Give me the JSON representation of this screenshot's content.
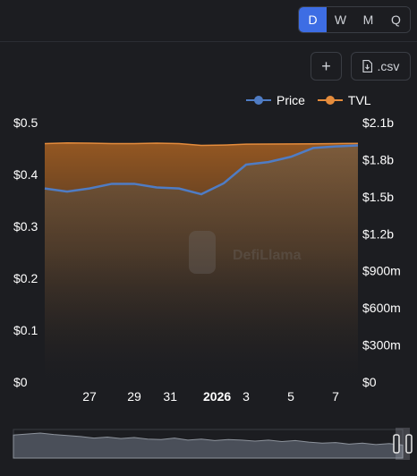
{
  "toolbar": {
    "intervals": [
      {
        "label": "D",
        "active": true
      },
      {
        "label": "W",
        "active": false
      },
      {
        "label": "M",
        "active": false
      },
      {
        "label": "Q",
        "active": false
      }
    ],
    "add_label": "+",
    "csv_label": ".csv",
    "add_icon": "plus-icon",
    "csv_icon": "file-download-icon"
  },
  "watermark": "DefiLlama",
  "colors": {
    "background": "#1c1d21",
    "price": "#4f7cc4",
    "tvl": "#e58c3c",
    "active": "#3d6de4"
  },
  "chart_data": {
    "type": "line",
    "title": "",
    "x": [
      "Dec 25",
      "Dec 26",
      "Dec 27",
      "Dec 28",
      "Dec 29",
      "Dec 30",
      "Dec 31",
      "Jan 1",
      "Jan 2",
      "Jan 3",
      "Jan 4",
      "Jan 5",
      "Jan 6",
      "Jan 7",
      "Jan 8"
    ],
    "x_tick_labels": [
      "27",
      "29",
      "31",
      "2026",
      "3",
      "5",
      "7"
    ],
    "x_tick_index": [
      2,
      4,
      6,
      7,
      9,
      11,
      13
    ],
    "y_left_ticks": [
      "$0",
      "$0.1",
      "$0.2",
      "$0.3",
      "$0.4",
      "$0.5"
    ],
    "y_right_ticks": [
      "$0",
      "$300m",
      "$600m",
      "$900m",
      "$1.2b",
      "$1.5b",
      "$1.8b",
      "$2.1b"
    ],
    "y_left_range": [
      0,
      0.5
    ],
    "y_right_range": [
      0,
      2100000000
    ],
    "legend_position": "top-right",
    "grid": false,
    "series": [
      {
        "name": "Price",
        "axis": "left",
        "style": "line",
        "values": [
          0.373,
          0.367,
          0.373,
          0.382,
          0.382,
          0.375,
          0.373,
          0.362,
          0.383,
          0.419,
          0.424,
          0.434,
          0.451,
          0.454,
          0.456
        ]
      },
      {
        "name": "TVL",
        "axis": "right",
        "style": "area",
        "values": [
          1930000000,
          1935000000,
          1933000000,
          1930000000,
          1930000000,
          1933000000,
          1930000000,
          1915000000,
          1918000000,
          1925000000,
          1926000000,
          1927000000,
          1928000000,
          1930000000,
          1932000000
        ]
      }
    ],
    "brush": {
      "values": [
        0.46,
        0.48,
        0.5,
        0.47,
        0.45,
        0.43,
        0.4,
        0.42,
        0.39,
        0.41,
        0.38,
        0.37,
        0.4,
        0.36,
        0.38,
        0.35,
        0.37,
        0.36,
        0.34,
        0.36,
        0.33,
        0.35,
        0.32,
        0.3,
        0.31,
        0.28,
        0.3,
        0.27,
        0.29,
        0.26
      ]
    }
  }
}
